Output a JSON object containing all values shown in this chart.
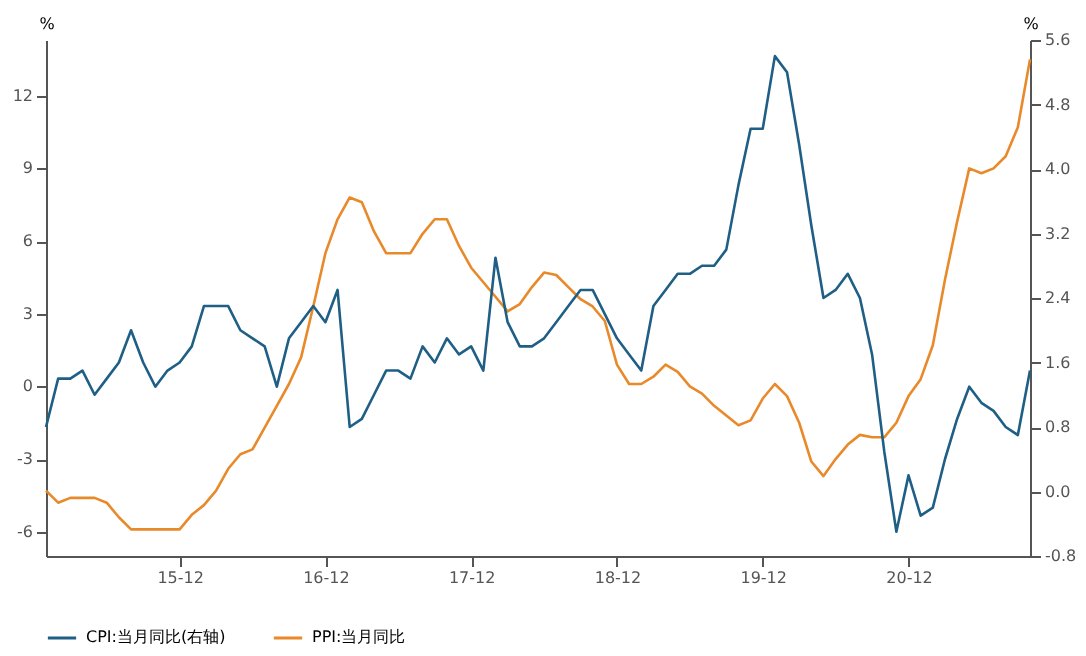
{
  "chart_data": {
    "type": "line",
    "ylabel": "%",
    "y2label": "%",
    "categories": [
      null,
      null,
      null,
      null,
      null,
      null,
      null,
      null,
      null,
      null,
      null,
      "15-12",
      null,
      null,
      null,
      null,
      null,
      null,
      null,
      null,
      null,
      null,
      null,
      "16-12",
      null,
      null,
      null,
      null,
      null,
      null,
      null,
      null,
      null,
      null,
      null,
      "17-12",
      null,
      null,
      null,
      null,
      null,
      null,
      null,
      null,
      null,
      null,
      null,
      "18-12",
      null,
      null,
      null,
      null,
      null,
      null,
      null,
      null,
      null,
      null,
      null,
      "19-12",
      null,
      null,
      null,
      null,
      null,
      null,
      null,
      null,
      null,
      null,
      null,
      "20-12",
      null,
      null,
      null,
      null,
      null,
      null,
      null,
      null,
      null,
      null
    ],
    "series": [
      {
        "name": "CPI:当月同比(右轴)",
        "color": "#1f5f86",
        "axis": "y2",
        "values": [
          0.8,
          1.4,
          1.4,
          1.5,
          1.2,
          1.4,
          1.6,
          2.0,
          1.6,
          1.3,
          1.5,
          1.6,
          1.8,
          2.3,
          2.3,
          2.3,
          2.0,
          1.9,
          1.8,
          1.3,
          1.9,
          2.1,
          2.3,
          2.1,
          2.5,
          0.8,
          0.9,
          1.2,
          1.5,
          1.5,
          1.4,
          1.8,
          1.6,
          1.9,
          1.7,
          1.8,
          1.5,
          2.9,
          2.1,
          1.8,
          1.8,
          1.9,
          2.1,
          2.3,
          2.5,
          2.5,
          2.2,
          1.9,
          1.7,
          1.5,
          2.3,
          2.5,
          2.7,
          2.7,
          2.8,
          2.8,
          3.0,
          3.8,
          4.5,
          4.5,
          5.4,
          5.2,
          4.3,
          3.3,
          2.4,
          2.5,
          2.7,
          2.4,
          1.7,
          0.5,
          -0.5,
          0.2,
          -0.3,
          -0.2,
          0.4,
          0.9,
          1.3,
          1.1,
          1.0,
          0.8,
          0.7,
          1.5
        ]
      },
      {
        "name": "PPI:当月同比",
        "color": "#e8892a",
        "values": [
          -4.3,
          -4.8,
          -4.6,
          -4.6,
          -4.6,
          -4.8,
          -5.4,
          -5.9,
          -5.9,
          -5.9,
          -5.9,
          -5.9,
          -5.3,
          -4.9,
          -4.3,
          -3.4,
          -2.8,
          -2.6,
          -1.7,
          -0.8,
          0.1,
          1.2,
          3.3,
          5.5,
          6.9,
          7.8,
          7.6,
          6.4,
          5.5,
          5.5,
          5.5,
          6.3,
          6.9,
          6.9,
          5.8,
          4.9,
          4.3,
          3.7,
          3.1,
          3.4,
          4.1,
          4.7,
          4.6,
          4.1,
          3.6,
          3.3,
          2.7,
          0.9,
          0.1,
          0.1,
          0.4,
          0.9,
          0.6,
          0.0,
          -0.3,
          -0.8,
          -1.2,
          -1.6,
          -1.4,
          -0.5,
          0.1,
          -0.4,
          -1.5,
          -3.1,
          -3.7,
          -3.0,
          -2.4,
          -2.0,
          -2.1,
          -2.1,
          -1.5,
          -0.4,
          0.3,
          1.7,
          4.4,
          6.8,
          9.0,
          8.8,
          9.0,
          9.5,
          10.7,
          13.5
        ]
      }
    ],
    "ylim": [
      -7,
      14.3
    ],
    "yticks": [
      -6,
      -3,
      0,
      3,
      6,
      9,
      12
    ],
    "y2lim": [
      -0.8,
      5.6
    ],
    "y2ticks": [
      -0.8,
      {
        "value": 0,
        "label": "0.0"
      },
      0.8,
      1.6,
      2.4,
      3.2,
      {
        "value": 4,
        "label": "4.0"
      },
      4.8,
      5.6
    ],
    "legend": "bottom",
    "grid": false
  }
}
